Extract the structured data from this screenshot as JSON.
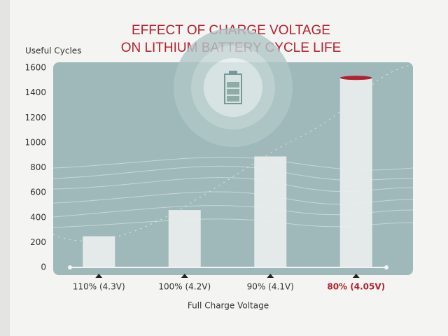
{
  "chart_data": {
    "type": "bar",
    "title": [
      "EFFECT OF CHARGE VOLTAGE",
      "ON LITHIUM BATTERY CYCLE LIFE"
    ],
    "y_label": "Useful Cycles",
    "x_label": "Full Charge Voltage",
    "categories": [
      "110% (4.3V)",
      "100% (4.2V)",
      "90% (4.1V)",
      "80% (4.05V)"
    ],
    "values": [
      250,
      460,
      890,
      1520
    ],
    "color": "#e9eeee",
    "label_colors": [
      "#333333",
      "#333333",
      "#333333",
      "#b3202e"
    ],
    "ylim": [
      0,
      1600
    ],
    "yticks": [
      0,
      200,
      400,
      600,
      800,
      1000,
      1200,
      1400,
      1600
    ],
    "grid": false
  }
}
